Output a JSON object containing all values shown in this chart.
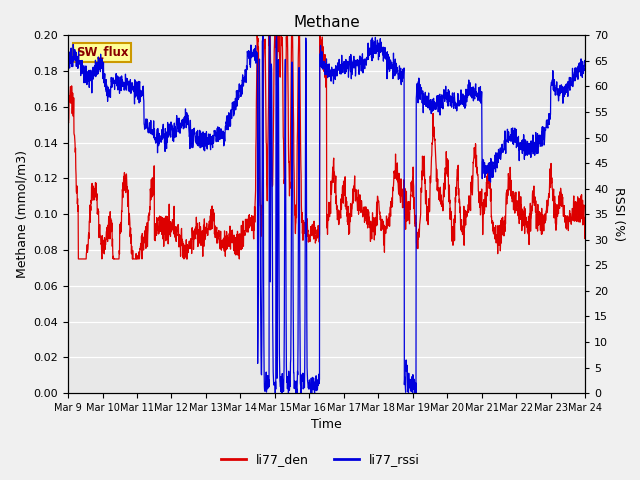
{
  "title": "Methane",
  "ylabel_left": "Methane (mmol/m3)",
  "ylabel_right": "RSSI (%)",
  "xlabel": "Time",
  "ylim_left": [
    0.0,
    0.2
  ],
  "ylim_right": [
    0,
    70
  ],
  "yticks_left": [
    0.0,
    0.02,
    0.04,
    0.06,
    0.08,
    0.1,
    0.12,
    0.14,
    0.16,
    0.18,
    0.2
  ],
  "yticks_right": [
    0,
    5,
    10,
    15,
    20,
    25,
    30,
    35,
    40,
    45,
    50,
    55,
    60,
    65,
    70
  ],
  "xtick_labels": [
    "Mar 9",
    "Mar 10",
    "Mar 11",
    "Mar 12",
    "Mar 13",
    "Mar 14",
    "Mar 15",
    "Mar 16",
    "Mar 17",
    "Mar 18",
    "Mar 19",
    "Mar 20",
    "Mar 21",
    "Mar 22",
    "Mar 23",
    "Mar 24"
  ],
  "color_den": "#dd0000",
  "color_rssi": "#0000dd",
  "bg_color": "#e8e8e8",
  "fig_bg_color": "#f0f0f0",
  "legend_label_den": "li77_den",
  "legend_label_rssi": "li77_rssi",
  "sw_flux_label": "SW_flux",
  "sw_flux_bg": "#ffff99",
  "sw_flux_border": "#cc9900",
  "linewidth": 0.9,
  "title_fontsize": 11,
  "label_fontsize": 9,
  "tick_fontsize": 8
}
